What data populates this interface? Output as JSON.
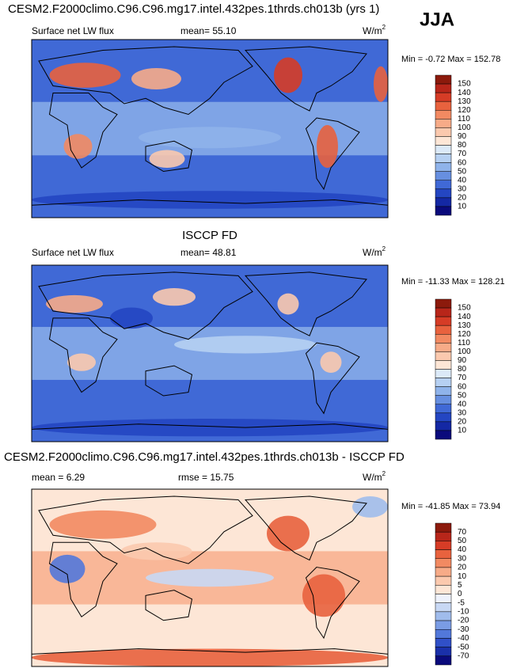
{
  "season": "JJA",
  "panels": [
    {
      "title": "CESM2.F2000climo.C96.C96.mg17.intel.432pes.1thrds.ch013b (yrs 1)",
      "left": "Surface net LW flux",
      "center": "mean=  55.10",
      "unit": {
        "base": "W/m",
        "sup": "2"
      },
      "minmax": "Min =  -0.72 Max = 152.78",
      "colorbar": {
        "labels": [
          "150",
          "140",
          "130",
          "120",
          "110",
          "100",
          "90",
          "80",
          "70",
          "60",
          "50",
          "40",
          "30",
          "20",
          "10"
        ],
        "colors": [
          "#8c1a0c",
          "#b8261a",
          "#d63c26",
          "#e8623e",
          "#f28a62",
          "#f7ab88",
          "#fbc9ae",
          "#fde6d6",
          "#dbe9f8",
          "#b6d0f2",
          "#8fb3ea",
          "#678fe0",
          "#4069d6",
          "#2446c2",
          "#1428a4",
          "#0a0a7c"
        ]
      }
    },
    {
      "title": "ISCCP FD",
      "left": "Surface net LW flux",
      "center": "mean=  48.81",
      "unit": {
        "base": "W/m",
        "sup": "2"
      },
      "minmax": "Min = -11.33 Max = 128.21",
      "colorbar": {
        "labels": [
          "150",
          "140",
          "130",
          "120",
          "110",
          "100",
          "90",
          "80",
          "70",
          "60",
          "50",
          "40",
          "30",
          "20",
          "10"
        ],
        "colors": [
          "#8c1a0c",
          "#b8261a",
          "#d63c26",
          "#e8623e",
          "#f28a62",
          "#f7ab88",
          "#fbc9ae",
          "#fde6d6",
          "#dbe9f8",
          "#b6d0f2",
          "#8fb3ea",
          "#678fe0",
          "#4069d6",
          "#2446c2",
          "#1428a4",
          "#0a0a7c"
        ]
      }
    },
    {
      "title": "CESM2.F2000climo.C96.C96.mg17.intel.432pes.1thrds.ch013b - ISCCP FD",
      "left": "mean =  6.29",
      "center": "rmse =  15.75",
      "unit": {
        "base": "W/m",
        "sup": "2"
      },
      "minmax": "Min = -41.85 Max =  73.94",
      "colorbar": {
        "labels": [
          "70",
          "50",
          "40",
          "30",
          "20",
          "10",
          "5",
          "0",
          "-5",
          "-10",
          "-20",
          "-30",
          "-40",
          "-50",
          "-70"
        ],
        "colors": [
          "#8c1a0c",
          "#b8261a",
          "#d63c26",
          "#e8623e",
          "#f28a62",
          "#f7ab88",
          "#fbc9ae",
          "#fde6d6",
          "#eef2fc",
          "#c8d8f4",
          "#a0bcec",
          "#7a9ce4",
          "#5278da",
          "#3050c8",
          "#1a30aa",
          "#0a0a7c"
        ]
      }
    }
  ]
}
